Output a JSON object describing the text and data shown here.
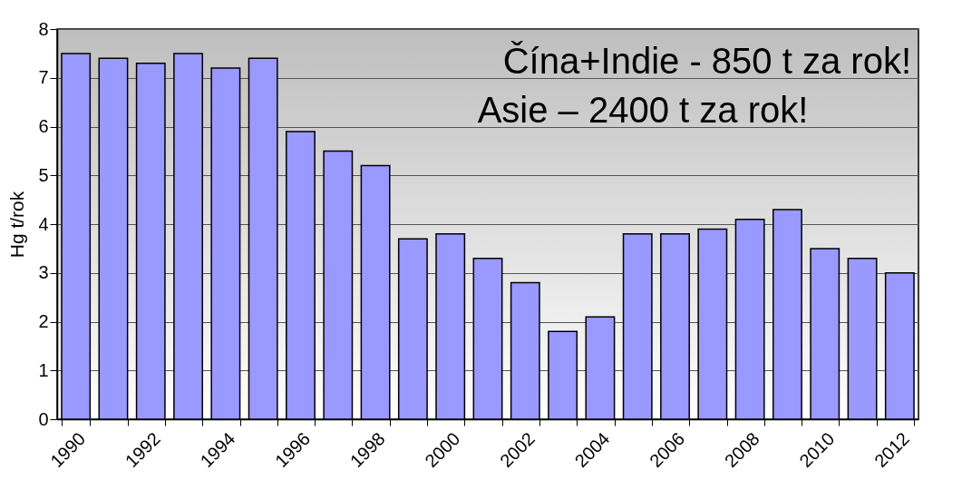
{
  "chart_data": {
    "type": "bar",
    "ylabel": "Hg t/rok",
    "categories": [
      "1990",
      null,
      "1992",
      null,
      "1994",
      null,
      "1996",
      null,
      "1998",
      null,
      "2000",
      null,
      "2002",
      null,
      "2004",
      null,
      "2006",
      null,
      "2008",
      null,
      "2010",
      null,
      "2012"
    ],
    "values": [
      7.5,
      7.4,
      7.3,
      7.5,
      7.2,
      7.4,
      5.9,
      5.5,
      5.2,
      3.7,
      3.8,
      3.3,
      2.8,
      1.8,
      2.1,
      3.8,
      3.8,
      3.9,
      4.1,
      4.3,
      3.5,
      3.3,
      3.0
    ],
    "color": "#9999ff",
    "ylim": [
      0,
      8
    ],
    "yticks": [
      0,
      1,
      2,
      3,
      4,
      5,
      6,
      7,
      8
    ],
    "grid": "y",
    "annotations": [
      "Čína+Indie - 850 t za rok!",
      "Asie – 2400 t za rok!"
    ]
  }
}
